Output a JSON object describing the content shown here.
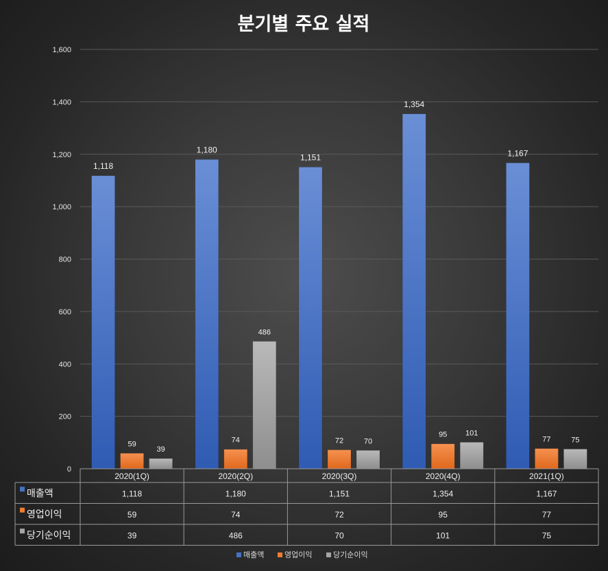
{
  "chart_data": {
    "type": "bar",
    "title": "분기별 주요 실적",
    "categories": [
      "2020(1Q)",
      "2020(2Q)",
      "2020(3Q)",
      "2020(4Q)",
      "2021(1Q)"
    ],
    "series": [
      {
        "name": "매출액",
        "values": [
          1118,
          1180,
          1151,
          1354,
          1167
        ],
        "labels": [
          "1,118",
          "1,180",
          "1,151",
          "1,354",
          "1,167"
        ],
        "color": "#4472c4"
      },
      {
        "name": "영업이익",
        "values": [
          59,
          74,
          72,
          95,
          77
        ],
        "labels": [
          "59",
          "74",
          "72",
          "95",
          "77"
        ],
        "color": "#ed7d31"
      },
      {
        "name": "당기순이익",
        "values": [
          39,
          486,
          70,
          101,
          75
        ],
        "labels": [
          "39",
          "486",
          "70",
          "101",
          "75"
        ],
        "color": "#a5a5a5"
      }
    ],
    "ylim": [
      0,
      1600
    ],
    "yticks": [
      0,
      200,
      400,
      600,
      800,
      1000,
      1200,
      1400,
      1600
    ],
    "ytick_labels": [
      "0",
      "200",
      "400",
      "600",
      "800",
      "1,000",
      "1,200",
      "1,400",
      "1,600"
    ],
    "grid": true,
    "legend_position": "bottom",
    "data_table": true
  }
}
